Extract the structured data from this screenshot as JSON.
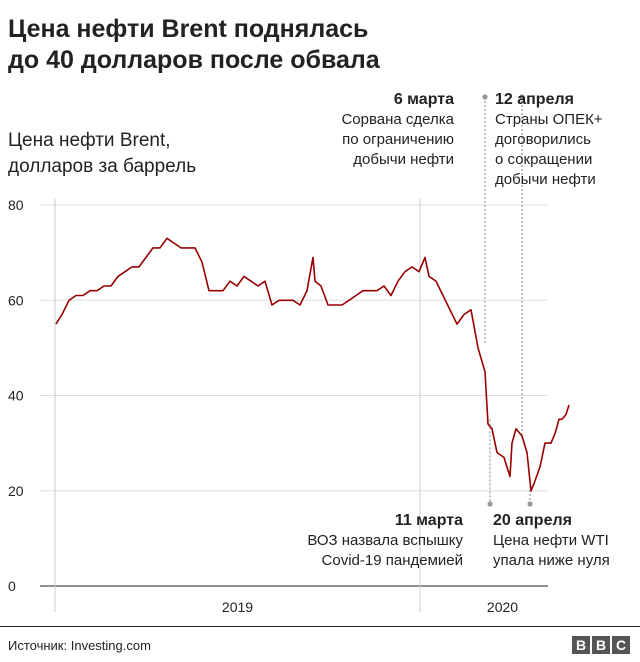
{
  "title_line1": "Цена нефти Brent поднялась",
  "title_line2": "до 40 долларов после обвала",
  "subtitle_line1": "Цена нефти Brent,",
  "subtitle_line2": "долларов за баррель",
  "annotations": [
    {
      "date": "6 марта",
      "lines": [
        "Сорвана сделка",
        "по ограничению",
        "добычи нефти"
      ],
      "value": 51
    },
    {
      "date": "12 апреля",
      "lines": [
        "Страны ОПЕК+",
        "договорились",
        "о сокращении",
        "добычи нефти"
      ],
      "value": 31.5
    },
    {
      "date": "11 марта",
      "lines": [
        "ВОЗ назвала вспышку",
        "Covid-19 пандемией"
      ],
      "value": 35
    },
    {
      "date": "20 апреля",
      "lines": [
        "Цена нефти WTI",
        "упала ниже нуля"
      ],
      "value": 21
    }
  ],
  "source": "Источник: Investing.com",
  "logo_letters": [
    "B",
    "B",
    "C"
  ],
  "colors": {
    "line": "#990000",
    "grid": "#dddddd",
    "axis": "#222222",
    "ref": "#999999"
  },
  "chart_data": {
    "type": "line",
    "title": "Цена нефти Brent поднялась до 40 долларов после обвала",
    "ylabel": "Цена нефти Brent, долларов за баррель",
    "ylim": [
      0,
      80
    ],
    "yticks": [
      0,
      20,
      40,
      60,
      80
    ],
    "x_labels": [
      "2019",
      "2020"
    ],
    "x_range": [
      "2019-01-01",
      "2020-05-29"
    ],
    "grid": true,
    "series": [
      {
        "points": [
          [
            "2019-01-02",
            55
          ],
          [
            "2019-01-08",
            57
          ],
          [
            "2019-01-15",
            60
          ],
          [
            "2019-01-22",
            61
          ],
          [
            "2019-01-29",
            61
          ],
          [
            "2019-02-05",
            62
          ],
          [
            "2019-02-12",
            62
          ],
          [
            "2019-02-19",
            63
          ],
          [
            "2019-02-26",
            63
          ],
          [
            "2019-03-05",
            65
          ],
          [
            "2019-03-12",
            66
          ],
          [
            "2019-03-19",
            67
          ],
          [
            "2019-03-26",
            67
          ],
          [
            "2019-04-02",
            69
          ],
          [
            "2019-04-09",
            71
          ],
          [
            "2019-04-16",
            71
          ],
          [
            "2019-04-23",
            73
          ],
          [
            "2019-04-30",
            72
          ],
          [
            "2019-05-07",
            71
          ],
          [
            "2019-05-14",
            71
          ],
          [
            "2019-05-21",
            71
          ],
          [
            "2019-05-28",
            68
          ],
          [
            "2019-06-04",
            62
          ],
          [
            "2019-06-11",
            62
          ],
          [
            "2019-06-18",
            62
          ],
          [
            "2019-06-25",
            64
          ],
          [
            "2019-07-02",
            63
          ],
          [
            "2019-07-09",
            65
          ],
          [
            "2019-07-16",
            64
          ],
          [
            "2019-07-23",
            63
          ],
          [
            "2019-07-30",
            64
          ],
          [
            "2019-08-06",
            59
          ],
          [
            "2019-08-13",
            60
          ],
          [
            "2019-08-20",
            60
          ],
          [
            "2019-08-27",
            60
          ],
          [
            "2019-09-03",
            59
          ],
          [
            "2019-09-10",
            62
          ],
          [
            "2019-09-16",
            69
          ],
          [
            "2019-09-18",
            64
          ],
          [
            "2019-09-24",
            63
          ],
          [
            "2019-10-01",
            59
          ],
          [
            "2019-10-08",
            59
          ],
          [
            "2019-10-15",
            59
          ],
          [
            "2019-10-22",
            60
          ],
          [
            "2019-10-29",
            61
          ],
          [
            "2019-11-05",
            62
          ],
          [
            "2019-11-12",
            62
          ],
          [
            "2019-11-19",
            62
          ],
          [
            "2019-11-26",
            63
          ],
          [
            "2019-12-03",
            61
          ],
          [
            "2019-12-10",
            64
          ],
          [
            "2019-12-17",
            66
          ],
          [
            "2019-12-24",
            67
          ],
          [
            "2019-12-31",
            66
          ],
          [
            "2020-01-06",
            69
          ],
          [
            "2020-01-10",
            65
          ],
          [
            "2020-01-17",
            64
          ],
          [
            "2020-01-24",
            61
          ],
          [
            "2020-01-31",
            58
          ],
          [
            "2020-02-07",
            55
          ],
          [
            "2020-02-14",
            57
          ],
          [
            "2020-02-21",
            58
          ],
          [
            "2020-02-28",
            50
          ],
          [
            "2020-03-06",
            45
          ],
          [
            "2020-03-09",
            34
          ],
          [
            "2020-03-13",
            33
          ],
          [
            "2020-03-18",
            28
          ],
          [
            "2020-03-25",
            27
          ],
          [
            "2020-03-31",
            23
          ],
          [
            "2020-04-02",
            30
          ],
          [
            "2020-04-06",
            33
          ],
          [
            "2020-04-12",
            31.5
          ],
          [
            "2020-04-17",
            28
          ],
          [
            "2020-04-21",
            20
          ],
          [
            "2020-04-24",
            21.5
          ],
          [
            "2020-04-30",
            25
          ],
          [
            "2020-05-05",
            30
          ],
          [
            "2020-05-11",
            30
          ],
          [
            "2020-05-15",
            32
          ],
          [
            "2020-05-19",
            35
          ],
          [
            "2020-05-22",
            35
          ],
          [
            "2020-05-26",
            36
          ],
          [
            "2020-05-29",
            38
          ]
        ]
      }
    ]
  }
}
